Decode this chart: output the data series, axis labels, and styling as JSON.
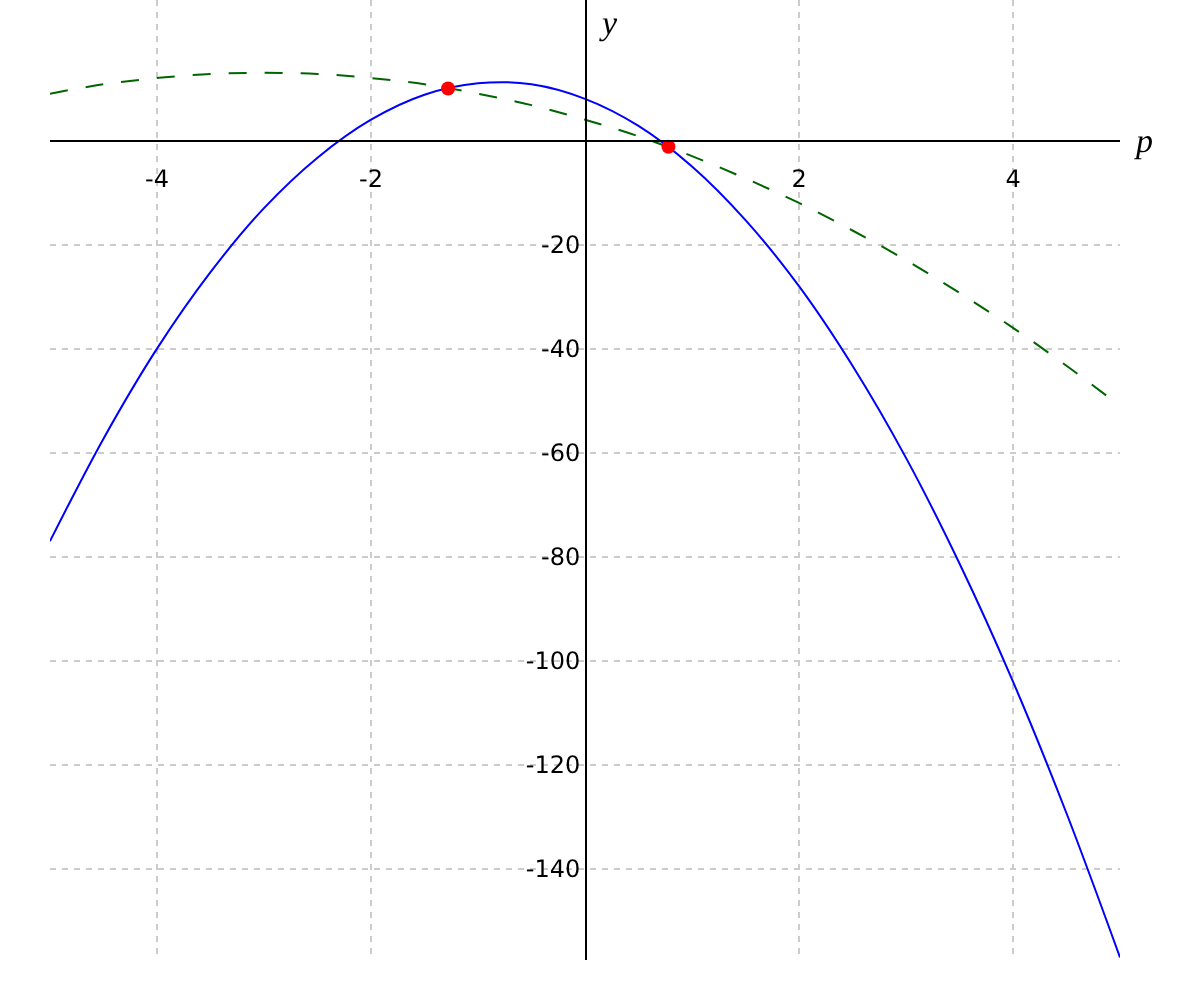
{
  "chart_data": {
    "type": "line",
    "xlabel": "p",
    "ylabel": "y",
    "xlim": [
      -5,
      5
    ],
    "ylim": [
      -157.5,
      27
    ],
    "xticks": [
      {
        "value": -4,
        "label": "-4"
      },
      {
        "value": -2,
        "label": "-2"
      },
      {
        "value": 2,
        "label": "2"
      },
      {
        "value": 4,
        "label": "4"
      }
    ],
    "yticks": [
      {
        "value": -140,
        "label": "-140"
      },
      {
        "value": -120,
        "label": "-120"
      },
      {
        "value": -100,
        "label": "-100"
      },
      {
        "value": -80,
        "label": "-80"
      },
      {
        "value": -60,
        "label": "-60"
      },
      {
        "value": -40,
        "label": "-40"
      },
      {
        "value": -20,
        "label": "-20"
      }
    ],
    "grid": true,
    "series": [
      {
        "type": "line",
        "color": "#0000ff",
        "line_style": "solid",
        "x": [
          -5,
          -4.5,
          -4,
          -3.5,
          -3,
          -2.5,
          -2,
          -1.5,
          -1,
          -0.5,
          0,
          0.5,
          1,
          1.5,
          2,
          2.5,
          3,
          3.5,
          4,
          4.5,
          5
        ],
        "values": [
          -77,
          -57.3,
          -40,
          -25.3,
          -13,
          -3.3,
          4,
          8.8,
          11,
          10.8,
          8,
          2.8,
          -5,
          -15.3,
          -28,
          -43.3,
          -61,
          -81.3,
          -104,
          -129.3,
          -157
        ]
      },
      {
        "type": "line",
        "color": "#006400",
        "line_style": "dashed",
        "x": [
          -5,
          -4.5,
          -4,
          -3.5,
          -3,
          -2.5,
          -2,
          -1.5,
          -1,
          -0.5,
          0,
          0.5,
          1,
          1.5,
          2,
          2.5,
          3,
          3.5,
          4,
          4.5,
          5
        ],
        "values": [
          9,
          10.8,
          12,
          12.8,
          13,
          12.8,
          12,
          10.8,
          9,
          6.8,
          4,
          0.8,
          -3,
          -7.3,
          -12,
          -17.3,
          -23,
          -29.3,
          -36,
          -43.3,
          -51
        ]
      },
      {
        "type": "scatter",
        "color": "#ff0000",
        "marker": "circle",
        "x": [
          -1.28,
          0.78
        ],
        "values": [
          10,
          -1.2
        ]
      }
    ]
  }
}
